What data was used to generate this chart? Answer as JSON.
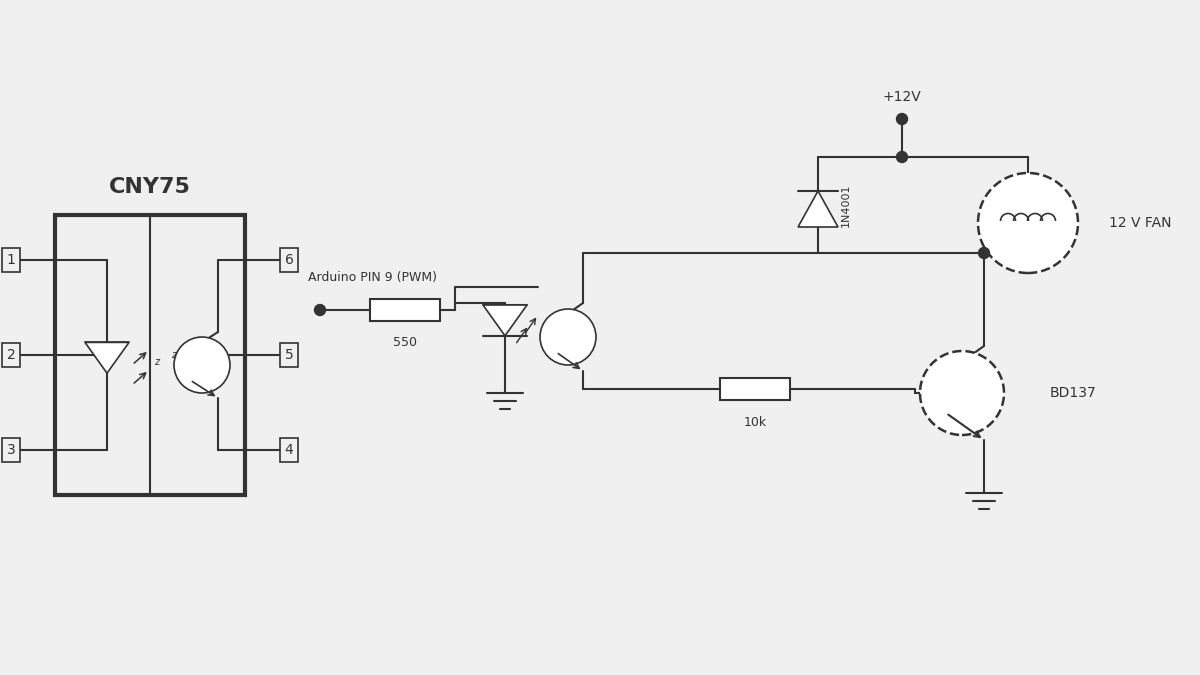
{
  "bg_color": "#f0f0f0",
  "line_color": "#333333",
  "labels": {
    "cny75": "CNY75",
    "pin1": "1",
    "pin2": "2",
    "pin3": "3",
    "pin4": "4",
    "pin5": "5",
    "pin6": "6",
    "arduino_pin": "Arduino PIN 9 (PWM)",
    "r550": "550",
    "r10k": "10k",
    "diode_1n4001": "1N4001",
    "vcc": "+12V",
    "fan_label": "12 V FAN",
    "bd137": "BD137",
    "z_label": "z"
  }
}
